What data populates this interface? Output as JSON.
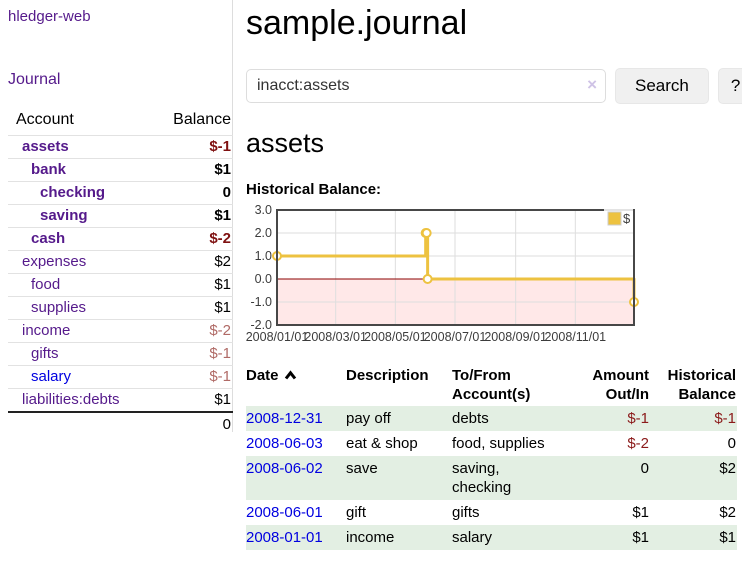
{
  "app": {
    "brand": "hledger-web"
  },
  "sidebar": {
    "journal_link": "Journal",
    "table": {
      "headers": [
        "Account",
        "Balance"
      ],
      "rows": [
        {
          "name": "assets",
          "indent": 1,
          "bold": true,
          "link_variant": "purple",
          "balance": "$-1",
          "balance_style": "neg-strong"
        },
        {
          "name": "bank",
          "indent": 2,
          "bold": true,
          "link_variant": "purple",
          "balance": "$1",
          "balance_style": "pos"
        },
        {
          "name": "checking",
          "indent": 3,
          "bold": true,
          "link_variant": "purple",
          "balance": "0",
          "balance_style": "pos"
        },
        {
          "name": "saving",
          "indent": 3,
          "bold": true,
          "link_variant": "purple",
          "balance": "$1",
          "balance_style": "pos"
        },
        {
          "name": "cash",
          "indent": 2,
          "bold": true,
          "link_variant": "purple",
          "balance": "$-2",
          "balance_style": "neg-strong"
        },
        {
          "name": "expenses",
          "indent": 1,
          "bold": false,
          "link_variant": "purple",
          "balance": "$2",
          "balance_style": "pos"
        },
        {
          "name": "food",
          "indent": 2,
          "bold": false,
          "link_variant": "purple",
          "balance": "$1",
          "balance_style": "pos"
        },
        {
          "name": "supplies",
          "indent": 2,
          "bold": false,
          "link_variant": "purple",
          "balance": "$1",
          "balance_style": "pos"
        },
        {
          "name": "income",
          "indent": 1,
          "bold": false,
          "link_variant": "purple",
          "balance": "$-2",
          "balance_style": "neg-soft"
        },
        {
          "name": "gifts",
          "indent": 2,
          "bold": false,
          "link_variant": "purple",
          "balance": "$-1",
          "balance_style": "neg-soft"
        },
        {
          "name": "salary",
          "indent": 2,
          "bold": false,
          "link_variant": "blue",
          "balance": "$-1",
          "balance_style": "neg-soft"
        },
        {
          "name": "liabilities:debts",
          "indent": 1,
          "bold": false,
          "link_variant": "purple",
          "balance": "$1",
          "balance_style": "pos"
        }
      ],
      "total": "0"
    }
  },
  "main": {
    "title": "sample.journal",
    "search": {
      "value": "inacct:assets",
      "clear_label": "×",
      "button_label": "Search",
      "help_label": "?"
    },
    "account_heading": "assets",
    "chart_label": "Historical Balance:"
  },
  "chart_data": {
    "type": "line",
    "title": "Historical Balance",
    "series": [
      {
        "name": "$",
        "color": "#EDC240",
        "step": true,
        "points": [
          [
            "2008-01-01",
            1
          ],
          [
            "2008-06-01",
            2
          ],
          [
            "2008-06-02",
            2
          ],
          [
            "2008-06-03",
            0
          ],
          [
            "2008-12-31",
            -1
          ]
        ]
      }
    ],
    "x_start": "2008-01-01",
    "x_end": "2008-12-31",
    "x_ticks": [
      {
        "date": "2008-01-01",
        "label": "2008/01/01"
      },
      {
        "date": "2008-03-01",
        "label": "2008/03/01"
      },
      {
        "date": "2008-05-01",
        "label": "2008/05/01"
      },
      {
        "date": "2008-07-01",
        "label": "2008/07/01"
      },
      {
        "date": "2008-09-01",
        "label": "2008/09/01"
      },
      {
        "date": "2008-11-01",
        "label": "2008/11/01"
      }
    ],
    "ylim": [
      -2,
      3
    ],
    "y_tick_step": 1,
    "grid": true,
    "legend_position": "top-right",
    "colors": {
      "zero_line": "#8b0000",
      "negative_region": "rgba(255,0,0,0.09)",
      "grid": "#dedede",
      "border": "#474747",
      "tick_text": "#3c3c3c",
      "legend_box_border": "#cccccc"
    }
  },
  "register": {
    "headers": [
      "Date",
      "Description",
      "To/From Account(s)",
      "Amount Out/In",
      "Historical Balance"
    ],
    "rows": [
      {
        "date": "2008-12-31",
        "description": "pay off",
        "accounts": "debts",
        "amount": "$-1",
        "amount_class": "neg",
        "balance": "$-1",
        "balance_class": "neg"
      },
      {
        "date": "2008-06-03",
        "description": "eat & shop",
        "accounts": "food, supplies",
        "amount": "$-2",
        "amount_class": "neg",
        "balance": "0",
        "balance_class": ""
      },
      {
        "date": "2008-06-02",
        "description": "save",
        "accounts": "saving, checking",
        "amount": "0",
        "amount_class": "",
        "balance": "$2",
        "balance_class": ""
      },
      {
        "date": "2008-06-01",
        "description": "gift",
        "accounts": "gifts",
        "amount": "$1",
        "amount_class": "",
        "balance": "$2",
        "balance_class": ""
      },
      {
        "date": "2008-01-01",
        "description": "income",
        "accounts": "salary",
        "amount": "$1",
        "amount_class": "",
        "balance": "$1",
        "balance_class": ""
      }
    ]
  }
}
